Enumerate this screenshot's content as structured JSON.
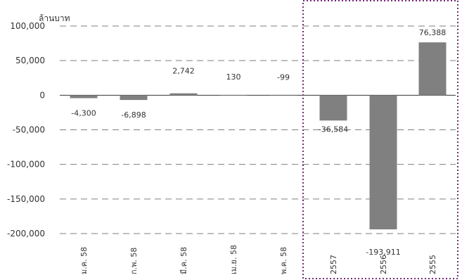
{
  "chart_data": {
    "type": "bar",
    "unit_label": "ล้านบาท",
    "categories": [
      "ม.ค. 58",
      "ก.พ. 58",
      "มี.ค. 58",
      "เม.ย. 58",
      "พ.ค. 58",
      "2557",
      "2556",
      "2555"
    ],
    "values": [
      -4300,
      -6898,
      2742,
      130,
      -99,
      -36584,
      -193911,
      76388
    ],
    "data_labels": [
      "-4,300",
      "-6,898",
      "2,742",
      "130",
      "-99",
      "-36,584",
      "-193,911",
      "76,388"
    ],
    "yticks": [
      100000,
      50000,
      0,
      -50000,
      -100000,
      -150000,
      -200000
    ],
    "ytick_labels": [
      "100,000",
      "50,000",
      "0",
      "-50,000",
      "-100,000",
      "-150,000",
      "-200,000"
    ],
    "ylim": [
      -200000,
      100000
    ],
    "grid": "dashed horizontal",
    "highlight": "dotted box around annual bars 2557–2555"
  },
  "colors": {
    "bar": "#808080",
    "grid": "#7f7f7f",
    "axis": "#333333",
    "highlight_border": "#7b2a7b"
  }
}
